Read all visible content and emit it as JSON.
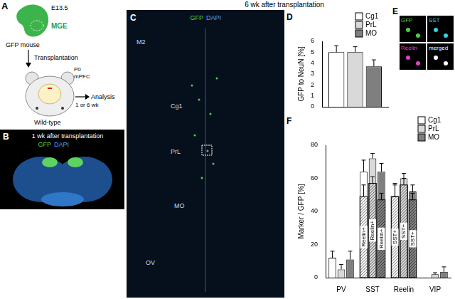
{
  "header": "6 wk after transplantation",
  "panels": {
    "A": {
      "label": "A",
      "texts": {
        "stage": "E13.5",
        "region": "MGE",
        "donor": "GFP mouse",
        "step": "Transplantation",
        "age": "P0",
        "target": "mPFC",
        "host": "Wild-type",
        "interval": "1 or 6 wk",
        "end": "Analysis"
      }
    },
    "B": {
      "label": "B",
      "title": "1 wk after transplantation",
      "channels": [
        "GFP",
        "DAPI"
      ]
    },
    "C": {
      "label": "C",
      "channels": [
        "GFP",
        "DAPI"
      ],
      "regions": [
        "M2",
        "Cg1",
        "PrL",
        "MO",
        "OV"
      ]
    },
    "D": {
      "label": "D"
    },
    "E": {
      "label": "E",
      "channels": [
        "GFP",
        "SST",
        "Reelin",
        "merged"
      ]
    },
    "F": {
      "label": "F"
    }
  },
  "chart_data": [
    {
      "type": "bar",
      "y_label": "GFP to NeuN [%]",
      "categories": [
        null
      ],
      "series": [
        {
          "name": "Cg1",
          "color": "#ffffff",
          "values": [
            5.0
          ],
          "errors": [
            0.6
          ]
        },
        {
          "name": "PrL",
          "color": "#d9d9d9",
          "values": [
            5.0
          ],
          "errors": [
            0.5
          ]
        },
        {
          "name": "MO",
          "color": "#7f7f7f",
          "values": [
            3.7
          ],
          "errors": [
            0.6
          ]
        }
      ],
      "ylim": [
        0,
        6
      ],
      "yticks": [
        0,
        1,
        2,
        3,
        4,
        5,
        6
      ],
      "legend": "upper right",
      "grid": false,
      "tick_labels": "y"
    },
    {
      "type": "bar",
      "y_label": "Marker / GFP [%]",
      "categories": [
        "PV",
        "SST",
        "Reelin",
        "VIP"
      ],
      "series": [
        {
          "name": "Cg1",
          "color": "#ffffff",
          "values": [
            12,
            64,
            49,
            0
          ],
          "errors": [
            4,
            7,
            8,
            0
          ],
          "subset_values": [
            null,
            49,
            49,
            null
          ],
          "subset_errors": [
            null,
            7,
            7,
            null
          ]
        },
        {
          "name": "PrL",
          "color": "#d9d9d9",
          "values": [
            5,
            72,
            60,
            2
          ],
          "errors": [
            3,
            3,
            3,
            1
          ],
          "subset_values": [
            null,
            57,
            56,
            null
          ],
          "subset_errors": [
            null,
            4,
            4,
            null
          ]
        },
        {
          "name": "MO",
          "color": "#7f7f7f",
          "values": [
            11,
            64,
            52,
            3.5
          ],
          "errors": [
            5,
            5,
            4,
            3
          ],
          "subset_values": [
            null,
            47,
            47,
            null
          ],
          "subset_errors": [
            null,
            4,
            4,
            null
          ]
        }
      ],
      "subset_labels": [
        null,
        "Reelin+",
        "SST+",
        null
      ],
      "ylim": [
        0,
        80
      ],
      "yticks": [
        0,
        20,
        40,
        60,
        80
      ],
      "legend": "upper right",
      "grid": false
    }
  ]
}
